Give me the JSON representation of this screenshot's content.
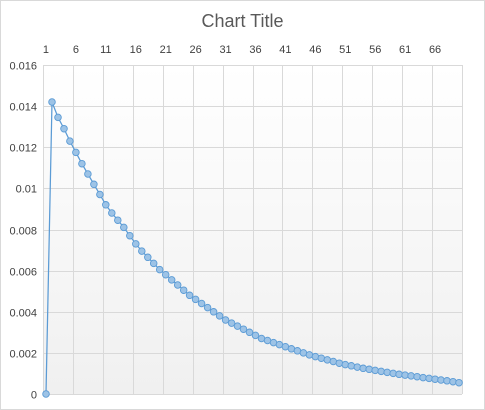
{
  "chart_data": {
    "type": "line",
    "title": "Chart Title",
    "x_tick_labels": [
      "1",
      "6",
      "11",
      "16",
      "21",
      "26",
      "31",
      "36",
      "41",
      "46",
      "51",
      "56",
      "61",
      "66"
    ],
    "y_tick_labels": [
      "0",
      "0.002",
      "0.004",
      "0.006",
      "0.008",
      "0.01",
      "0.012",
      "0.014",
      "0.016"
    ],
    "x_axis_position": "top",
    "ylim": [
      0,
      0.016
    ],
    "xlim": [
      0.5,
      70.5
    ],
    "grid": true,
    "legend": "none",
    "series_color": "#5b9bd5",
    "marker_fill": "#9dc3e6",
    "x": [
      1,
      2,
      3,
      4,
      5,
      6,
      7,
      8,
      9,
      10,
      11,
      12,
      13,
      14,
      15,
      16,
      17,
      18,
      19,
      20,
      21,
      22,
      23,
      24,
      25,
      26,
      27,
      28,
      29,
      30,
      31,
      32,
      33,
      34,
      35,
      36,
      37,
      38,
      39,
      40,
      41,
      42,
      43,
      44,
      45,
      46,
      47,
      48,
      49,
      50,
      51,
      52,
      53,
      54,
      55,
      56,
      57,
      58,
      59,
      60,
      61,
      62,
      63,
      64,
      65,
      66,
      67,
      68,
      69,
      70
    ],
    "values": [
      0,
      0.0142,
      0.01345,
      0.0129,
      0.0123,
      0.01175,
      0.0112,
      0.0107,
      0.0102,
      0.0097,
      0.0092,
      0.0088,
      0.00845,
      0.0081,
      0.0077,
      0.0073,
      0.00695,
      0.00665,
      0.00635,
      0.00605,
      0.0058,
      0.00555,
      0.0053,
      0.00505,
      0.0048,
      0.0046,
      0.0044,
      0.0042,
      0.004,
      0.0038,
      0.0036,
      0.00345,
      0.0033,
      0.00315,
      0.003,
      0.00285,
      0.0027,
      0.0026,
      0.0025,
      0.0024,
      0.0023,
      0.0022,
      0.0021,
      0.002,
      0.0019,
      0.00182,
      0.00174,
      0.00166,
      0.00158,
      0.0015,
      0.00143,
      0.00137,
      0.00131,
      0.00125,
      0.0012,
      0.00115,
      0.0011,
      0.00105,
      0.001,
      0.00096,
      0.00092,
      0.00088,
      0.00084,
      0.0008,
      0.00076,
      0.00072,
      0.00068,
      0.00064,
      0.0006,
      0.00055
    ]
  }
}
